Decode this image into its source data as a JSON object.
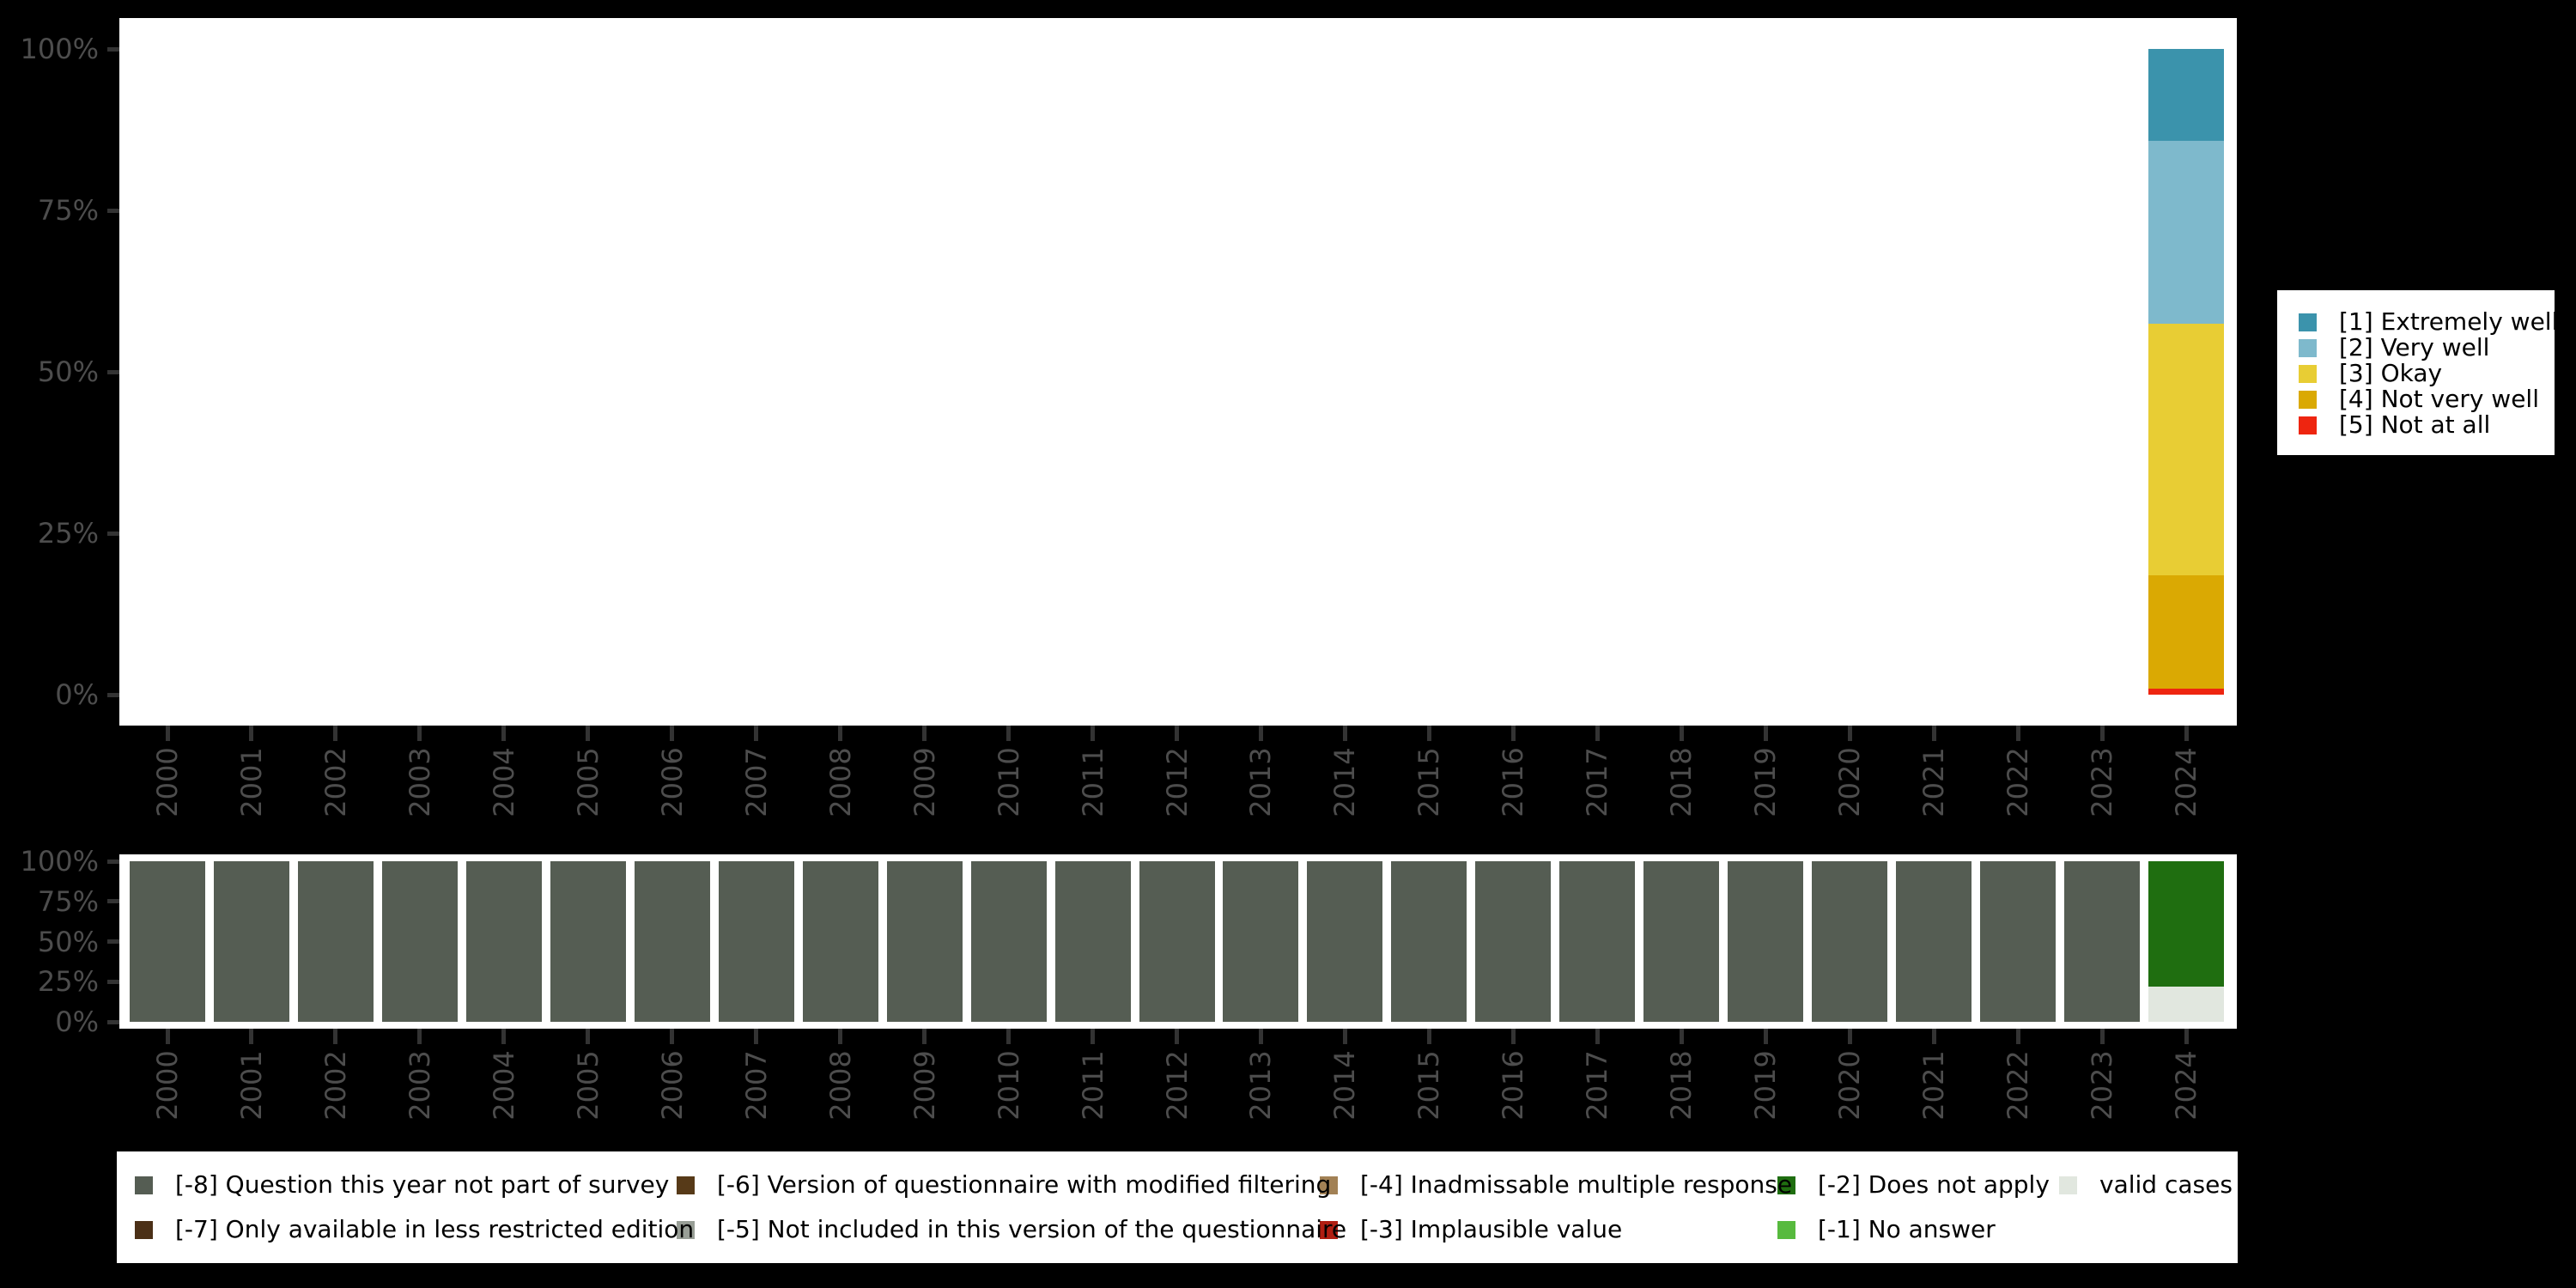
{
  "figure": {
    "background": "#000000",
    "panel_color": "#ffffff",
    "axis_text_color": "#4d4d4d",
    "tick_color": "#333333"
  },
  "chart_data": [
    {
      "id": "main",
      "type": "stacked-bar",
      "title": "",
      "categories": [
        "2000",
        "2001",
        "2002",
        "2003",
        "2004",
        "2005",
        "2006",
        "2007",
        "2008",
        "2009",
        "2010",
        "2011",
        "2012",
        "2013",
        "2014",
        "2015",
        "2016",
        "2017",
        "2018",
        "2019",
        "2020",
        "2021",
        "2022",
        "2023",
        "2024"
      ],
      "y_ticks": [
        0,
        25,
        50,
        75,
        100
      ],
      "y_tick_suffix": "%",
      "ylim": [
        0,
        100
      ],
      "grid": false,
      "legend_position": "right",
      "series": [
        {
          "name": "[1] Extremely well",
          "color": "#3B93AC",
          "values": [
            0,
            0,
            0,
            0,
            0,
            0,
            0,
            0,
            0,
            0,
            0,
            0,
            0,
            0,
            0,
            0,
            0,
            0,
            0,
            0,
            0,
            0,
            0,
            0,
            14.2
          ]
        },
        {
          "name": "[2] Very well",
          "color": "#7EB9CC",
          "values": [
            0,
            0,
            0,
            0,
            0,
            0,
            0,
            0,
            0,
            0,
            0,
            0,
            0,
            0,
            0,
            0,
            0,
            0,
            0,
            0,
            0,
            0,
            0,
            0,
            28.3
          ]
        },
        {
          "name": "[3] Okay",
          "color": "#E8CD34",
          "values": [
            0,
            0,
            0,
            0,
            0,
            0,
            0,
            0,
            0,
            0,
            0,
            0,
            0,
            0,
            0,
            0,
            0,
            0,
            0,
            0,
            0,
            0,
            0,
            0,
            39.0
          ]
        },
        {
          "name": "[4] Not very well",
          "color": "#DAA903",
          "values": [
            0,
            0,
            0,
            0,
            0,
            0,
            0,
            0,
            0,
            0,
            0,
            0,
            0,
            0,
            0,
            0,
            0,
            0,
            0,
            0,
            0,
            0,
            0,
            0,
            17.6
          ]
        },
        {
          "name": "[5] Not at all",
          "color": "#EE2510",
          "values": [
            0,
            0,
            0,
            0,
            0,
            0,
            0,
            0,
            0,
            0,
            0,
            0,
            0,
            0,
            0,
            0,
            0,
            0,
            0,
            0,
            0,
            0,
            0,
            0,
            0.9
          ]
        }
      ]
    },
    {
      "id": "missings",
      "type": "stacked-bar",
      "title": "",
      "categories": [
        "2000",
        "2001",
        "2002",
        "2003",
        "2004",
        "2005",
        "2006",
        "2007",
        "2008",
        "2009",
        "2010",
        "2011",
        "2012",
        "2013",
        "2014",
        "2015",
        "2016",
        "2017",
        "2018",
        "2019",
        "2020",
        "2021",
        "2022",
        "2023",
        "2024"
      ],
      "y_ticks": [
        0,
        25,
        50,
        75,
        100
      ],
      "y_tick_suffix": "%",
      "ylim": [
        0,
        100
      ],
      "grid": false,
      "legend_position": "bottom",
      "series": [
        {
          "name": "[-8] Question this year not part of survey",
          "color": "#555D53",
          "values": [
            100,
            100,
            100,
            100,
            100,
            100,
            100,
            100,
            100,
            100,
            100,
            100,
            100,
            100,
            100,
            100,
            100,
            100,
            100,
            100,
            100,
            100,
            100,
            100,
            0
          ]
        },
        {
          "name": "[-7] Only available in less restricted edition",
          "color": "#4B3017",
          "values": [
            0,
            0,
            0,
            0,
            0,
            0,
            0,
            0,
            0,
            0,
            0,
            0,
            0,
            0,
            0,
            0,
            0,
            0,
            0,
            0,
            0,
            0,
            0,
            0,
            0
          ]
        },
        {
          "name": "[-6] Version of questionnaire with modified filtering",
          "color": "#573A18",
          "values": [
            0,
            0,
            0,
            0,
            0,
            0,
            0,
            0,
            0,
            0,
            0,
            0,
            0,
            0,
            0,
            0,
            0,
            0,
            0,
            0,
            0,
            0,
            0,
            0,
            0
          ]
        },
        {
          "name": "[-5] Not included in this version of the questionnaire",
          "color": "#989E96",
          "values": [
            0,
            0,
            0,
            0,
            0,
            0,
            0,
            0,
            0,
            0,
            0,
            0,
            0,
            0,
            0,
            0,
            0,
            0,
            0,
            0,
            0,
            0,
            0,
            0,
            0
          ]
        },
        {
          "name": "[-4] Inadmissable multiple response",
          "color": "#A28155",
          "values": [
            0,
            0,
            0,
            0,
            0,
            0,
            0,
            0,
            0,
            0,
            0,
            0,
            0,
            0,
            0,
            0,
            0,
            0,
            0,
            0,
            0,
            0,
            0,
            0,
            0
          ]
        },
        {
          "name": "[-3] Implausible value",
          "color": "#B01E12",
          "values": [
            0,
            0,
            0,
            0,
            0,
            0,
            0,
            0,
            0,
            0,
            0,
            0,
            0,
            0,
            0,
            0,
            0,
            0,
            0,
            0,
            0,
            0,
            0,
            0,
            0
          ]
        },
        {
          "name": "[-2] Does not apply",
          "color": "#1F6E10",
          "values": [
            0,
            0,
            0,
            0,
            0,
            0,
            0,
            0,
            0,
            0,
            0,
            0,
            0,
            0,
            0,
            0,
            0,
            0,
            0,
            0,
            0,
            0,
            0,
            0,
            78.1
          ]
        },
        {
          "name": "[-1] No answer",
          "color": "#57BA3E",
          "values": [
            0,
            0,
            0,
            0,
            0,
            0,
            0,
            0,
            0,
            0,
            0,
            0,
            0,
            0,
            0,
            0,
            0,
            0,
            0,
            0,
            0,
            0,
            0,
            0,
            0
          ]
        },
        {
          "name": "valid cases",
          "color": "#E1E7DF",
          "values": [
            0,
            0,
            0,
            0,
            0,
            0,
            0,
            0,
            0,
            0,
            0,
            0,
            0,
            0,
            0,
            0,
            0,
            0,
            0,
            0,
            0,
            0,
            0,
            0,
            21.9
          ]
        }
      ]
    }
  ]
}
